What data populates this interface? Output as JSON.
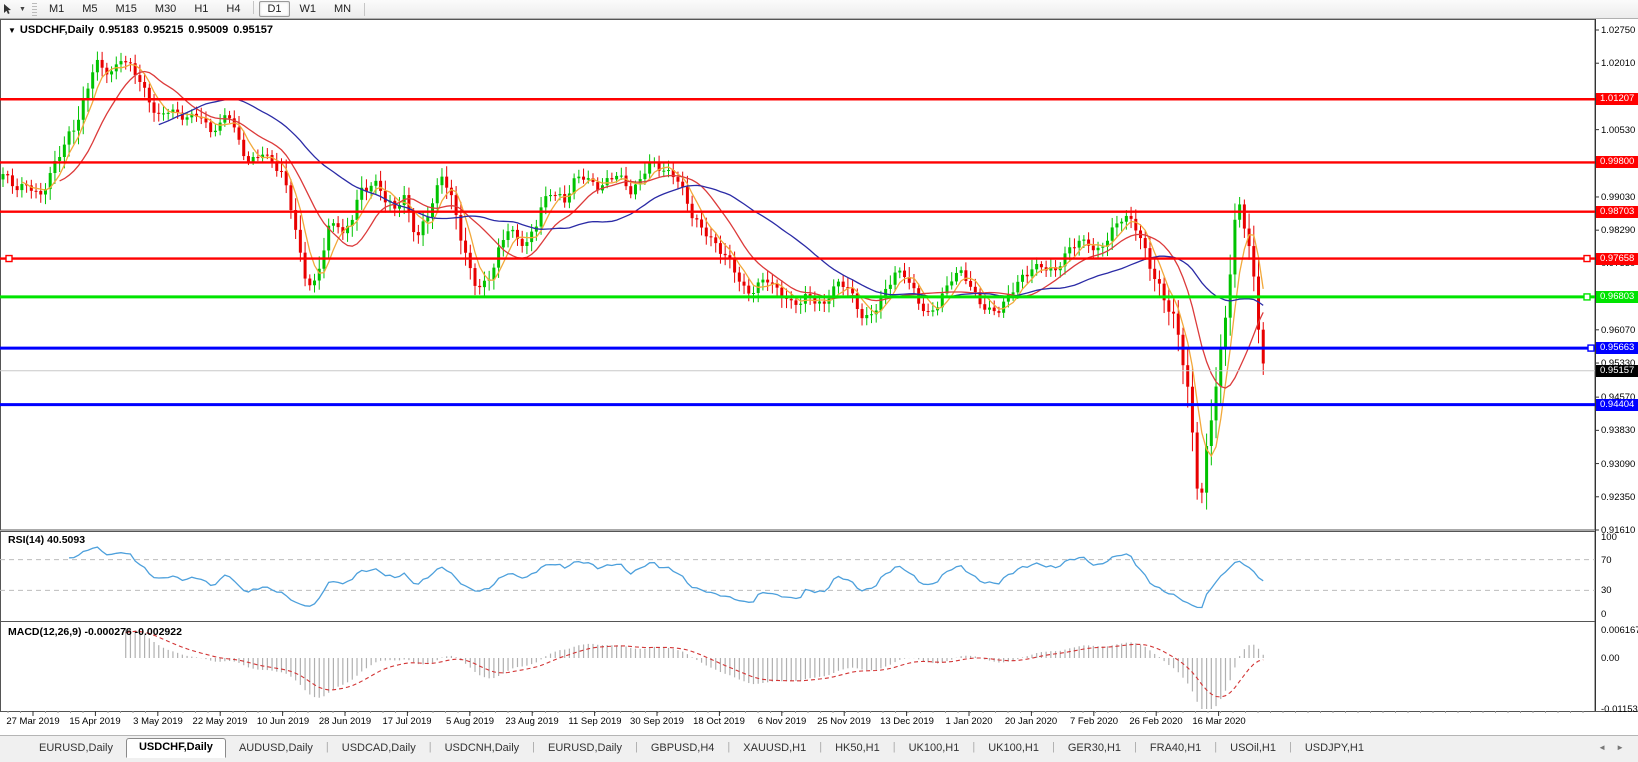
{
  "toolbar": {
    "timeframes": [
      "M1",
      "M5",
      "M15",
      "M30",
      "H1",
      "H4",
      "D1",
      "W1",
      "MN"
    ],
    "active_timeframe": "D1"
  },
  "icons": {
    "cursor_icon": "cursor-icon",
    "dropdown_caret": "▼",
    "title_marker": "▼",
    "tab_scroll_left": "◄",
    "tab_scroll_right": "►"
  },
  "chart": {
    "title": {
      "symbol": "USDCHF,Daily",
      "open": "0.95183",
      "high": "0.95215",
      "low": "0.95009",
      "close": "0.95157"
    },
    "y_axis_ticks": [
      "1.02750",
      "1.02010",
      "1.00530",
      "0.99030",
      "0.98290",
      "0.97550",
      "0.96070",
      "0.95330",
      "0.94570",
      "0.93830",
      "0.93090",
      "0.92350",
      "0.91610"
    ],
    "x_labels": [
      "27 Mar 2019",
      "15 Apr 2019",
      "3 May 2019",
      "22 May 2019",
      "10 Jun 2019",
      "28 Jun 2019",
      "17 Jul 2019",
      "5 Aug 2019",
      "23 Aug 2019",
      "11 Sep 2019",
      "30 Sep 2019",
      "18 Oct 2019",
      "6 Nov 2019",
      "25 Nov 2019",
      "13 Dec 2019",
      "1 Jan 2020",
      "20 Jan 2020",
      "7 Feb 2020",
      "26 Feb 2020",
      "16 Mar 2020"
    ]
  },
  "rsi": {
    "name": "RSI(14)",
    "value": "40.5093",
    "level_labels": [
      "100",
      "70",
      "30",
      "0"
    ],
    "levels": [
      100,
      70,
      30,
      0
    ],
    "dashed_levels": [
      70,
      30
    ]
  },
  "macd": {
    "name": "MACD(12,26,9)",
    "values": "-0.000276 -0.002922",
    "axis_labels": [
      "0.006167",
      "0.00",
      "-0.011531"
    ],
    "axis_values": [
      0.006167,
      0,
      -0.011531
    ]
  },
  "tabs": [
    "EURUSD,Daily",
    "USDCHF,Daily",
    "AUDUSD,Daily",
    "USDCAD,Daily",
    "USDCNH,Daily",
    "EURUSD,Daily",
    "GBPUSD,H4",
    "XAUUSD,H1",
    "HK50,H1",
    "UK100,H1",
    "UK100,H1",
    "GER30,H1",
    "FRA40,H1",
    "USOil,H1",
    "USDJPY,H1"
  ],
  "active_tab_index": 1,
  "colors": {
    "bull": "#00c300",
    "bear": "#e80000",
    "ma_fast": "#f2a93b",
    "ma_mid": "#dc3b3b",
    "ma_slow": "#2b2ba6",
    "line_red": "#ff0000",
    "line_green": "#00e400",
    "line_blue": "#0000ff",
    "current_line": "#c8c8c8",
    "current_badge": "#000000",
    "rsi_line": "#4da0dc",
    "macd_bar": "#b0b0b0",
    "macd_signal": "#d23434"
  },
  "chart_data": {
    "type": "candlestick",
    "symbol": "USDCHF",
    "timeframe": "Daily",
    "title": "USDCHF,Daily 0.95183 0.95215 0.95009 0.95157",
    "ohlc_current": {
      "open": 0.95183,
      "high": 0.95215,
      "low": 0.95009,
      "close": 0.95157
    },
    "y_axis_range": [
      0.9161,
      1.0275
    ],
    "x_range_dates": [
      "27 Mar 2019",
      "16 Mar 2020"
    ],
    "legend_position": "none",
    "grid": "off",
    "horizontal_levels": [
      {
        "price": 1.01207,
        "color": "#ff0000",
        "label": "1.01207",
        "width": 2.4,
        "handles": []
      },
      {
        "price": 0.998,
        "color": "#ff0000",
        "label": "0.99800",
        "width": 2.4,
        "handles": []
      },
      {
        "price": 0.98703,
        "color": "#ff0000",
        "label": "0.98703",
        "width": 2.4,
        "handles": []
      },
      {
        "price": 0.97658,
        "color": "#ff0000",
        "label": "0.97658",
        "width": 2.4,
        "handles": [
          6,
          1584
        ]
      },
      {
        "price": 0.96803,
        "color": "#00e400",
        "label": "0.96803",
        "width": 3,
        "handles": [
          1584
        ]
      },
      {
        "price": 0.95663,
        "color": "#0000ff",
        "label": "0.95663",
        "width": 3,
        "handles": [
          1588
        ]
      },
      {
        "price": 0.94404,
        "color": "#0000ff",
        "label": "0.94404",
        "width": 3,
        "handles": []
      }
    ],
    "current_price": {
      "value": 0.95157,
      "label": "0.95157"
    },
    "moving_averages": [
      {
        "name": "fast",
        "period": 5,
        "color": "#f2a93b"
      },
      {
        "name": "medium",
        "period": 13,
        "color": "#dc3b3b"
      },
      {
        "name": "slow",
        "period": 34,
        "color": "#2b2ba6"
      }
    ],
    "rsi": {
      "period": 14,
      "current": 40.5093,
      "axis": [
        0,
        100
      ],
      "overbought": 70,
      "oversold": 30
    },
    "macd": {
      "fast": 12,
      "slow": 26,
      "signal": 9,
      "current_main": -0.000276,
      "current_signal": -0.002922,
      "axis_max": 0.006167,
      "axis_min": -0.011531
    },
    "price_path_anchors": [
      [
        3,
        0.9945
      ],
      [
        16,
        0.9915
      ],
      [
        28,
        0.9938
      ],
      [
        40,
        0.9912
      ],
      [
        52,
        0.9958
      ],
      [
        64,
        1.0005
      ],
      [
        76,
        1.0062
      ],
      [
        86,
        1.0145
      ],
      [
        95,
        1.022
      ],
      [
        104,
        1.0185
      ],
      [
        113,
        1.0172
      ],
      [
        121,
        1.0202
      ],
      [
        130,
        1.0192
      ],
      [
        140,
        1.0172
      ],
      [
        150,
        1.0125
      ],
      [
        160,
        1.008
      ],
      [
        170,
        1.0092
      ],
      [
        180,
        1.0072
      ],
      [
        190,
        1.0082
      ],
      [
        200,
        1.0098
      ],
      [
        210,
        1.0055
      ],
      [
        220,
        1.006
      ],
      [
        228,
        1.0085
      ],
      [
        238,
        1.0018
      ],
      [
        248,
        0.9985
      ],
      [
        256,
        0.9998
      ],
      [
        262,
        1.0012
      ],
      [
        270,
        0.9988
      ],
      [
        280,
        0.9952
      ],
      [
        290,
        0.988
      ],
      [
        299,
        0.9778
      ],
      [
        307,
        0.9722
      ],
      [
        313,
        0.9708
      ],
      [
        320,
        0.9768
      ],
      [
        328,
        0.983
      ],
      [
        336,
        0.9845
      ],
      [
        344,
        0.9802
      ],
      [
        352,
        0.9852
      ],
      [
        360,
        0.992
      ],
      [
        370,
        0.9938
      ],
      [
        378,
        0.9942
      ],
      [
        386,
        0.9892
      ],
      [
        395,
        0.9868
      ],
      [
        404,
        0.9895
      ],
      [
        412,
        0.9838
      ],
      [
        418,
        0.982
      ],
      [
        426,
        0.9872
      ],
      [
        435,
        0.9915
      ],
      [
        443,
        0.9955
      ],
      [
        450,
        0.9892
      ],
      [
        457,
        0.9838
      ],
      [
        464,
        0.9775
      ],
      [
        471,
        0.9738
      ],
      [
        478,
        0.9706
      ],
      [
        485,
        0.9722
      ],
      [
        493,
        0.9748
      ],
      [
        501,
        0.9792
      ],
      [
        509,
        0.9826
      ],
      [
        518,
        0.98
      ],
      [
        526,
        0.9795
      ],
      [
        534,
        0.9845
      ],
      [
        542,
        0.9898
      ],
      [
        550,
        0.9915
      ],
      [
        558,
        0.9902
      ],
      [
        565,
        0.9882
      ],
      [
        573,
        0.9925
      ],
      [
        581,
        0.9952
      ],
      [
        590,
        0.9948
      ],
      [
        599,
        0.993
      ],
      [
        608,
        0.9942
      ],
      [
        617,
        0.9945
      ],
      [
        625,
        0.9922
      ],
      [
        632,
        0.9905
      ],
      [
        640,
        0.9945
      ],
      [
        647,
        0.9985
      ],
      [
        653,
        0.999
      ],
      [
        660,
        0.9972
      ],
      [
        668,
        0.9952
      ],
      [
        676,
        0.9938
      ],
      [
        684,
        0.9898
      ],
      [
        692,
        0.9862
      ],
      [
        700,
        0.9845
      ],
      [
        708,
        0.9832
      ],
      [
        716,
        0.98
      ],
      [
        724,
        0.9772
      ],
      [
        732,
        0.9738
      ],
      [
        740,
        0.9705
      ],
      [
        747,
        0.9685
      ],
      [
        754,
        0.9702
      ],
      [
        761,
        0.9726
      ],
      [
        768,
        0.9728
      ],
      [
        776,
        0.9698
      ],
      [
        784,
        0.9672
      ],
      [
        792,
        0.9655
      ],
      [
        800,
        0.9662
      ],
      [
        808,
        0.969
      ],
      [
        816,
        0.9678
      ],
      [
        824,
        0.967
      ],
      [
        832,
        0.9698
      ],
      [
        840,
        0.9706
      ],
      [
        848,
        0.9688
      ],
      [
        856,
        0.9658
      ],
      [
        864,
        0.9632
      ],
      [
        872,
        0.9655
      ],
      [
        880,
        0.9682
      ],
      [
        888,
        0.9706
      ],
      [
        896,
        0.9728
      ],
      [
        904,
        0.9722
      ],
      [
        912,
        0.9695
      ],
      [
        920,
        0.9668
      ],
      [
        928,
        0.965
      ],
      [
        936,
        0.9668
      ],
      [
        944,
        0.969
      ],
      [
        952,
        0.9715
      ],
      [
        960,
        0.9728
      ],
      [
        968,
        0.971
      ],
      [
        976,
        0.9685
      ],
      [
        984,
        0.9668
      ],
      [
        992,
        0.9656
      ],
      [
        1000,
        0.9652
      ],
      [
        1008,
        0.9672
      ],
      [
        1016,
        0.9695
      ],
      [
        1024,
        0.972
      ],
      [
        1032,
        0.9748
      ],
      [
        1040,
        0.976
      ],
      [
        1048,
        0.975
      ],
      [
        1056,
        0.974
      ],
      [
        1064,
        0.976
      ],
      [
        1072,
        0.9782
      ],
      [
        1080,
        0.98
      ],
      [
        1088,
        0.9805
      ],
      [
        1096,
        0.9788
      ],
      [
        1104,
        0.9808
      ],
      [
        1112,
        0.9828
      ],
      [
        1120,
        0.9845
      ],
      [
        1128,
        0.9848
      ],
      [
        1136,
        0.983
      ],
      [
        1144,
        0.9795
      ],
      [
        1152,
        0.9752
      ],
      [
        1159,
        0.9715
      ],
      [
        1166,
        0.9672
      ],
      [
        1173,
        0.9628
      ],
      [
        1180,
        0.956
      ],
      [
        1186,
        0.948
      ],
      [
        1191,
        0.939
      ],
      [
        1196,
        0.9285
      ],
      [
        1200,
        0.9212
      ],
      [
        1204,
        0.9295
      ],
      [
        1208,
        0.9388
      ],
      [
        1212,
        0.9455
      ],
      [
        1216,
        0.9505
      ],
      [
        1220,
        0.955
      ],
      [
        1224,
        0.9608
      ],
      [
        1228,
        0.9685
      ],
      [
        1232,
        0.9762
      ],
      [
        1236,
        0.9845
      ],
      [
        1239,
        0.9878
      ],
      [
        1242,
        0.9858
      ],
      [
        1246,
        0.9812
      ],
      [
        1250,
        0.9768
      ],
      [
        1254,
        0.9718
      ],
      [
        1258,
        0.9648
      ],
      [
        1262,
        0.9565
      ],
      [
        1265,
        0.9528
      ],
      [
        1268,
        0.9516
      ]
    ]
  }
}
